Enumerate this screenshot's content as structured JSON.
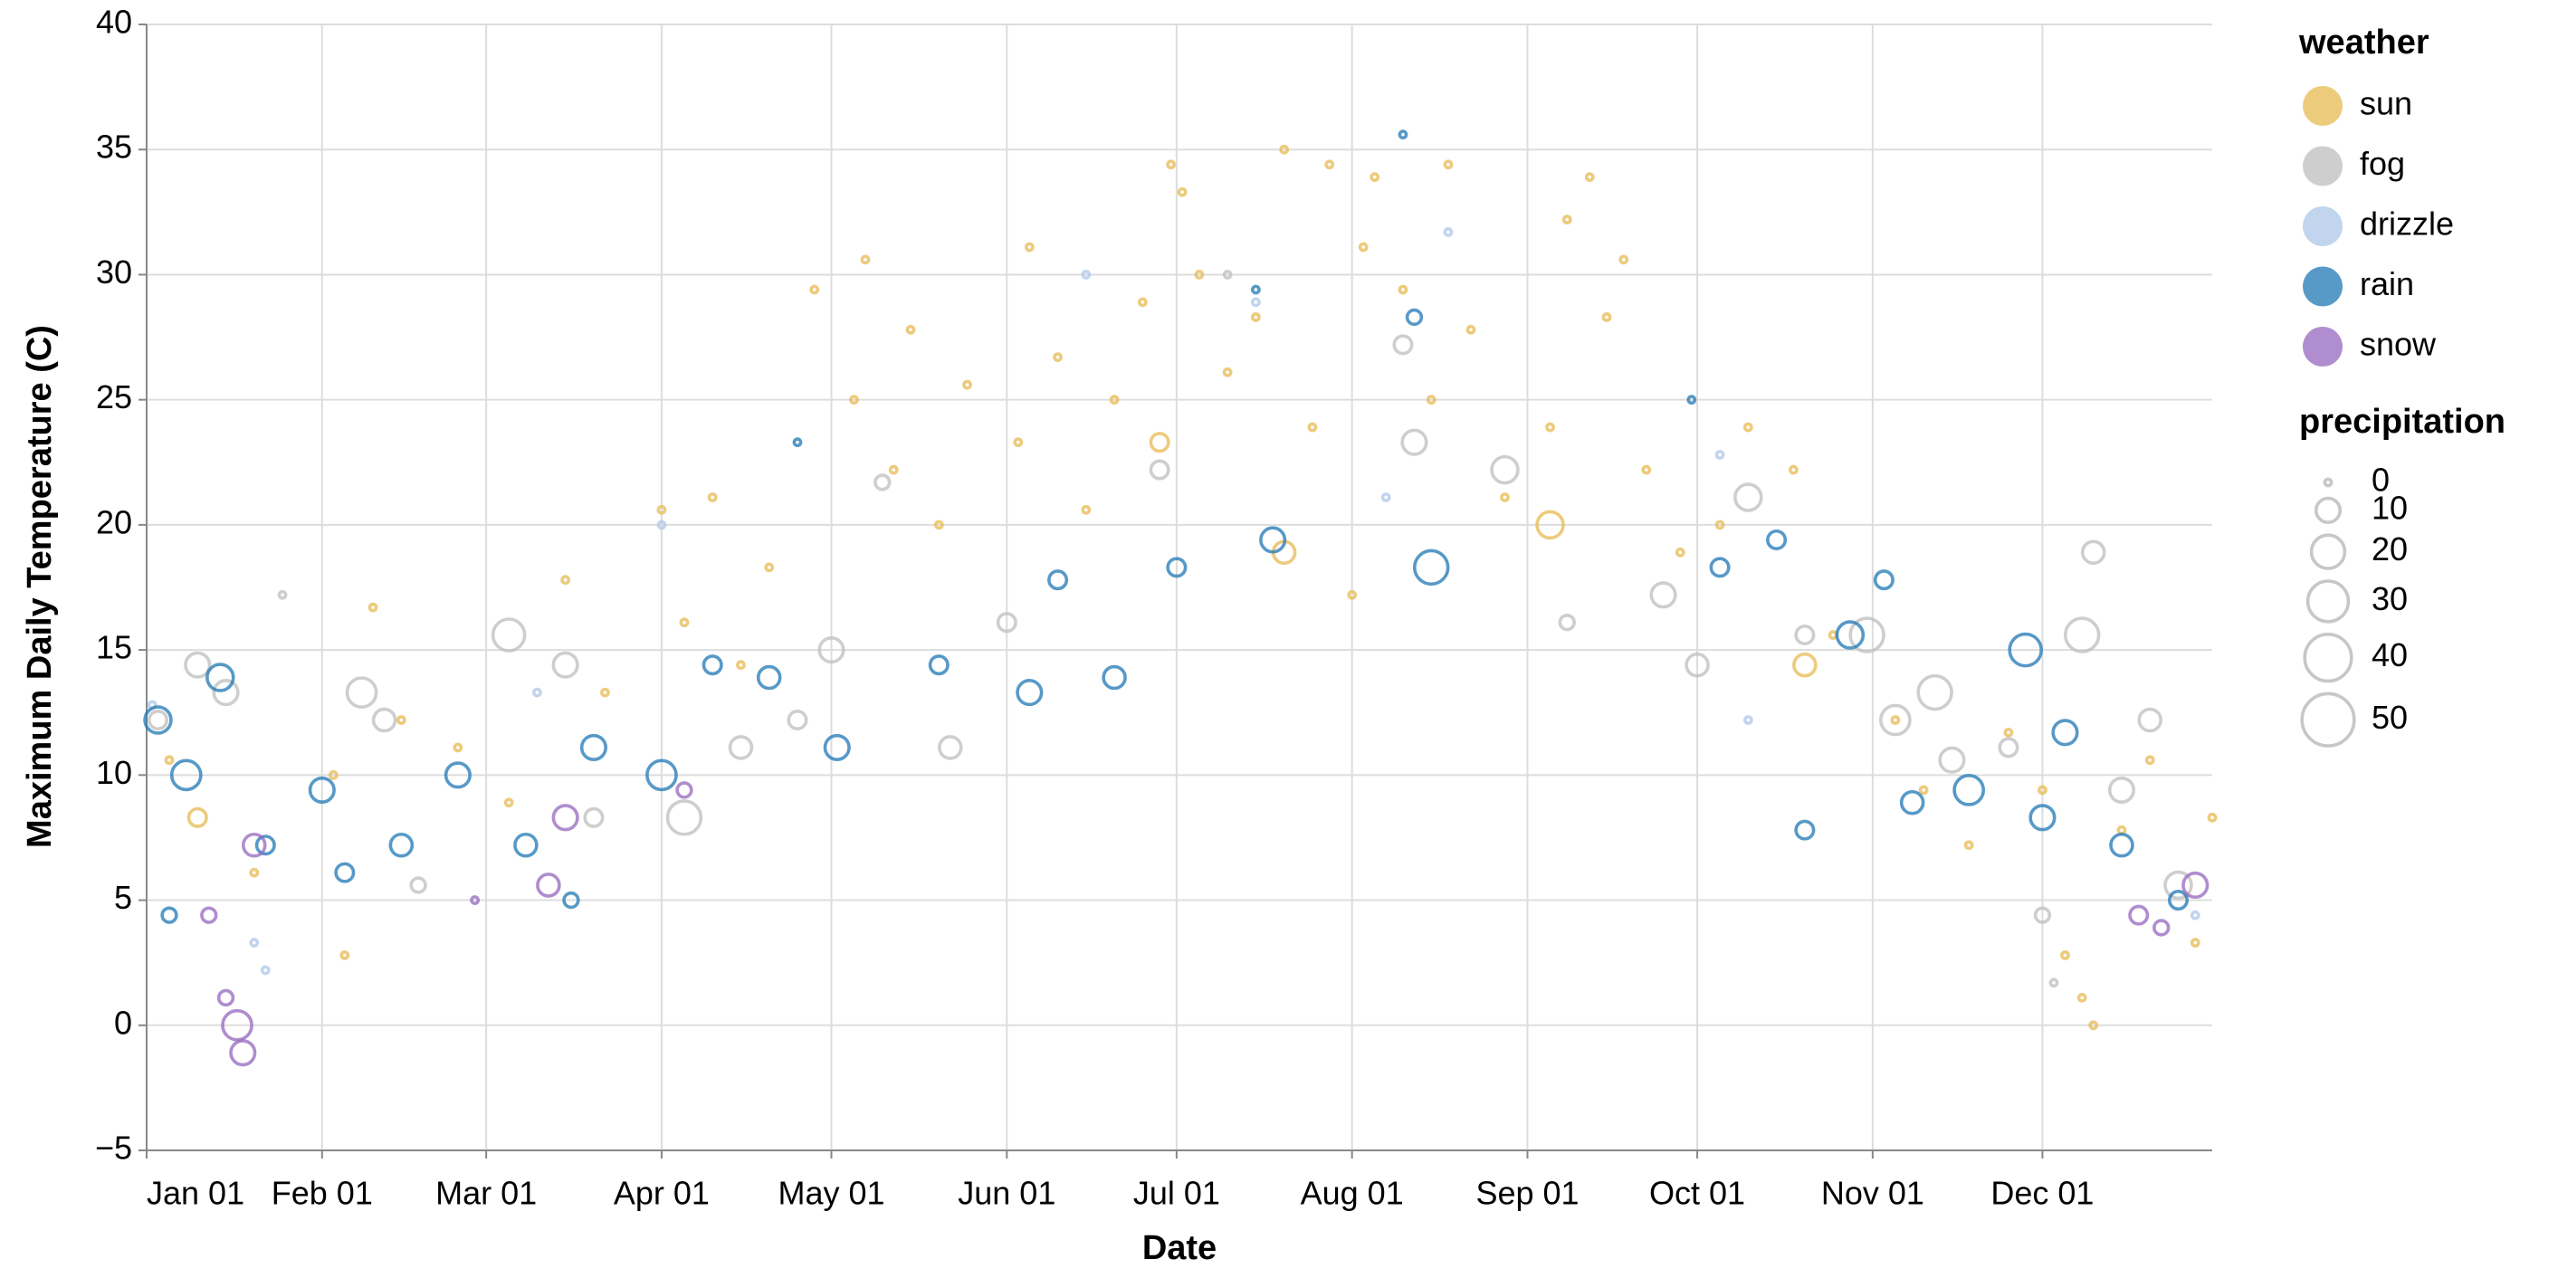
{
  "chart_data": {
    "type": "scatter",
    "x_label": "Date",
    "y_label": "Maximum Daily Temperature (C)",
    "xlim": [
      "Jan 01",
      "Dec 31"
    ],
    "xticks": [
      "Jan 01",
      "Feb 01",
      "Mar 01",
      "Apr 01",
      "May 01",
      "Jun 01",
      "Jul 01",
      "Aug 01",
      "Sep 01",
      "Oct 01",
      "Nov 01",
      "Dec 01"
    ],
    "ylim": [
      -5,
      40
    ],
    "yticks": [
      {
        "value": -5,
        "label": "−5"
      },
      0,
      5,
      10,
      15,
      20,
      25,
      30,
      35,
      40
    ],
    "grid": true,
    "color_legend_title": "weather",
    "size_legend": {
      "title": "precipitation",
      "values": [
        0,
        10,
        20,
        30,
        40,
        50
      ]
    },
    "series": [
      {
        "name": "sun",
        "color": "#e7ba52",
        "x": [
          "Jan 05",
          "Jan 10",
          "Jan 20",
          "Feb 03",
          "Feb 05",
          "Feb 10",
          "Feb 15",
          "Feb 25",
          "Mar 05",
          "Mar 15",
          "Mar 22",
          "Apr 01",
          "Apr 05",
          "Apr 10",
          "Apr 15",
          "Apr 20",
          "Apr 28",
          "May 05",
          "May 07",
          "May 12",
          "May 15",
          "May 20",
          "May 25",
          "Jun 03",
          "Jun 05",
          "Jun 10",
          "Jun 15",
          "Jun 20",
          "Jun 25",
          "Jun 28",
          "Jun 30",
          "Jul 02",
          "Jul 05",
          "Jul 10",
          "Jul 15",
          "Jul 20",
          "Jul 20",
          "Jul 25",
          "Jul 28",
          "Aug 01",
          "Aug 03",
          "Aug 05",
          "Aug 10",
          "Aug 15",
          "Aug 18",
          "Aug 22",
          "Aug 28",
          "Sep 05",
          "Sep 05",
          "Sep 08",
          "Sep 12",
          "Sep 15",
          "Sep 18",
          "Sep 22",
          "Sep 28",
          "Oct 05",
          "Oct 10",
          "Oct 18",
          "Oct 20",
          "Oct 25",
          "Nov 05",
          "Nov 10",
          "Nov 18",
          "Nov 25",
          "Dec 01",
          "Dec 05",
          "Dec 08",
          "Dec 10",
          "Dec 15",
          "Dec 20",
          "Dec 28",
          "Dec 31"
        ],
        "values": [
          10.6,
          8.3,
          6.1,
          10.0,
          2.8,
          16.7,
          12.2,
          11.1,
          8.9,
          17.8,
          13.3,
          20.6,
          16.1,
          21.1,
          14.4,
          18.3,
          29.4,
          25.0,
          30.6,
          22.2,
          27.8,
          20.0,
          25.6,
          23.3,
          31.1,
          26.7,
          20.6,
          25.0,
          28.9,
          23.3,
          34.4,
          33.3,
          30.0,
          26.1,
          28.3,
          35.0,
          18.9,
          23.9,
          34.4,
          17.2,
          31.1,
          33.9,
          29.4,
          25.0,
          34.4,
          27.8,
          21.1,
          23.9,
          20.0,
          32.2,
          33.9,
          28.3,
          30.6,
          22.2,
          18.9,
          20.0,
          23.9,
          22.2,
          14.4,
          15.6,
          12.2,
          9.4,
          7.2,
          11.7,
          9.4,
          2.8,
          1.1,
          0.0,
          7.8,
          10.6,
          3.3,
          8.3
        ],
        "sizes": [
          0,
          5,
          0,
          0,
          0,
          0,
          0,
          0,
          0,
          0,
          0,
          0,
          0,
          0,
          0,
          0,
          0,
          0,
          0,
          0,
          0,
          0,
          0,
          0,
          0,
          0,
          0,
          0,
          0,
          5,
          0,
          0,
          0,
          0,
          0,
          0,
          8,
          0,
          0,
          0,
          0,
          0,
          0,
          0,
          0,
          0,
          0,
          0,
          12,
          0,
          0,
          0,
          0,
          0,
          0,
          0,
          0,
          0,
          8,
          0,
          0,
          0,
          0,
          0,
          0,
          0,
          0,
          0,
          0,
          0,
          0,
          0
        ]
      },
      {
        "name": "fog",
        "color": "#bdbdbd",
        "x": [
          "Jan 03",
          "Jan 10",
          "Jan 15",
          "Jan 25",
          "Feb 08",
          "Feb 12",
          "Feb 18",
          "Mar 05",
          "Mar 15",
          "Mar 20",
          "Apr 05",
          "Apr 15",
          "Apr 25",
          "May 01",
          "May 10",
          "May 22",
          "Jun 01",
          "Jun 28",
          "Jul 10",
          "Aug 10",
          "Aug 12",
          "Aug 28",
          "Sep 08",
          "Sep 25",
          "Oct 01",
          "Oct 10",
          "Oct 20",
          "Oct 31",
          "Nov 05",
          "Nov 12",
          "Nov 15",
          "Nov 25",
          "Dec 01",
          "Dec 03",
          "Dec 08",
          "Dec 10",
          "Dec 15",
          "Dec 20",
          "Dec 25"
        ],
        "values": [
          12.2,
          14.4,
          13.3,
          17.2,
          13.3,
          12.2,
          5.6,
          15.6,
          14.4,
          8.3,
          8.3,
          11.1,
          12.2,
          15.0,
          21.7,
          11.1,
          16.1,
          22.2,
          30.0,
          27.2,
          23.3,
          22.2,
          16.1,
          17.2,
          14.4,
          21.1,
          15.6,
          15.6,
          12.2,
          13.3,
          10.6,
          11.1,
          4.4,
          1.7,
          15.6,
          18.9,
          9.4,
          12.2,
          5.6
        ],
        "sizes": [
          5,
          10,
          10,
          0,
          15,
          8,
          3,
          18,
          10,
          5,
          20,
          8,
          5,
          10,
          3,
          8,
          5,
          5,
          0,
          5,
          10,
          12,
          3,
          10,
          8,
          12,
          5,
          20,
          15,
          20,
          10,
          5,
          3,
          0,
          20,
          8,
          10,
          8,
          12
        ]
      },
      {
        "name": "drizzle",
        "color": "#aec7e8",
        "x": [
          "Jan 02",
          "Jan 20",
          "Jan 22",
          "Mar 10",
          "Apr 01",
          "Jun 15",
          "Jul 15",
          "Aug 07",
          "Aug 18",
          "Oct 05",
          "Oct 10",
          "Dec 28"
        ],
        "values": [
          12.8,
          3.3,
          2.2,
          13.3,
          20.0,
          30.0,
          28.9,
          21.1,
          31.7,
          22.8,
          12.2,
          4.4
        ],
        "sizes": [
          0,
          0,
          0,
          0,
          0,
          0,
          0,
          0,
          0,
          0,
          0,
          0
        ]
      },
      {
        "name": "rain",
        "color": "#1f77b4",
        "x": [
          "Jan 03",
          "Jan 08",
          "Jan 14",
          "Jan 05",
          "Jan 22",
          "Feb 01",
          "Feb 05",
          "Feb 15",
          "Feb 25",
          "Mar 08",
          "Mar 16",
          "Mar 20",
          "Apr 01",
          "Apr 10",
          "Apr 20",
          "Apr 25",
          "May 02",
          "May 20",
          "Jun 05",
          "Jun 10",
          "Jun 20",
          "Jul 01",
          "Jul 18",
          "Jul 15",
          "Aug 10",
          "Aug 12",
          "Aug 15",
          "Sep 30",
          "Oct 05",
          "Oct 15",
          "Oct 20",
          "Oct 28",
          "Nov 03",
          "Nov 08",
          "Nov 18",
          "Nov 28",
          "Dec 01",
          "Dec 05",
          "Dec 15",
          "Dec 25"
        ],
        "values": [
          12.2,
          10.0,
          13.9,
          4.4,
          7.2,
          9.4,
          6.1,
          7.2,
          10.0,
          7.2,
          5.0,
          11.1,
          10.0,
          14.4,
          13.9,
          23.3,
          11.1,
          14.4,
          13.3,
          17.8,
          13.9,
          18.3,
          19.4,
          29.4,
          35.6,
          28.3,
          18.3,
          25.0,
          18.3,
          19.4,
          7.8,
          15.6,
          17.8,
          8.9,
          9.4,
          15.0,
          8.3,
          11.7,
          7.2,
          5.0
        ],
        "sizes": [
          12,
          15,
          12,
          3,
          5,
          10,
          5,
          8,
          10,
          8,
          3,
          10,
          15,
          5,
          8,
          0,
          10,
          5,
          10,
          5,
          8,
          5,
          10,
          0,
          0,
          3,
          20,
          0,
          5,
          5,
          5,
          12,
          5,
          8,
          15,
          18,
          10,
          10,
          8,
          5
        ]
      },
      {
        "name": "snow",
        "color": "#9467bd",
        "x": [
          "Jan 12",
          "Jan 15",
          "Jan 17",
          "Jan 18",
          "Jan 20",
          "Feb 28",
          "Mar 15",
          "Mar 12",
          "Apr 05",
          "Dec 18",
          "Dec 22",
          "Dec 28"
        ],
        "values": [
          4.4,
          1.1,
          0.0,
          -1.1,
          7.2,
          5.0,
          8.3,
          5.6,
          9.4,
          4.4,
          3.9,
          5.6
        ],
        "sizes": [
          3,
          3,
          15,
          10,
          8,
          0,
          10,
          8,
          3,
          5,
          3,
          10
        ]
      }
    ]
  }
}
